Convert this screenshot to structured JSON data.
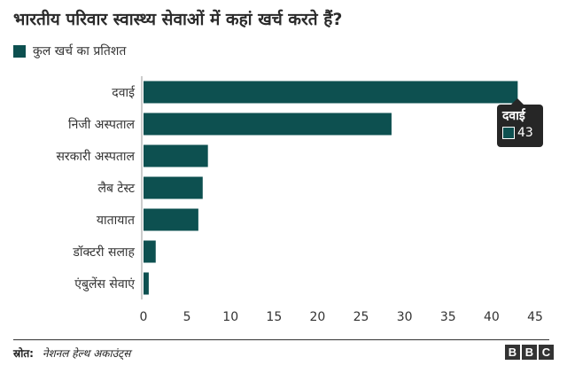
{
  "title": "भारतीय परिवार स्वास्थ्य सेवाओं में कहां खर्च करते हैं?",
  "legend": {
    "label": "कुल खर्च का प्रतिशत",
    "color": "#0d5050"
  },
  "chart_data": {
    "type": "bar",
    "orientation": "horizontal",
    "title": "भारतीय परिवार स्वास्थ्य सेवाओं में कहां खर्च करते हैं?",
    "categories": [
      "दवाई",
      "निजी अस्पताल",
      "सरकारी अस्पताल",
      "लैब टेस्ट",
      "यातायात",
      "डॉक्टरी सलाह",
      "एंबुलेंस सेवाएं"
    ],
    "series": [
      {
        "name": "कुल खर्च का प्रतिशत",
        "values": [
          43,
          28.5,
          7.4,
          6.8,
          6.3,
          1.4,
          0.6
        ]
      }
    ],
    "xlim": [
      0,
      45
    ],
    "xticks": [
      0,
      5,
      10,
      15,
      20,
      25,
      30,
      35,
      40,
      45
    ],
    "grid": false,
    "legend_position": "top-left",
    "bar_color": "#0d5050"
  },
  "tooltip": {
    "label": "दवाई",
    "value": "43"
  },
  "source": {
    "label": "स्रोत:",
    "text": "नेशनल हेल्थ अकाउंट्स"
  },
  "brand": [
    "B",
    "B",
    "C"
  ]
}
